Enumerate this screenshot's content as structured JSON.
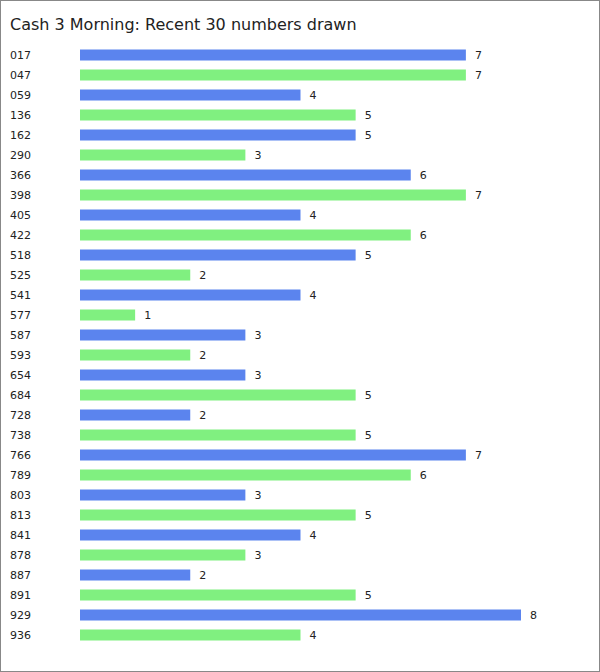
{
  "chart_data": {
    "type": "bar",
    "title": "Cash 3 Morning: Recent 30 numbers drawn",
    "orientation": "horizontal",
    "categories": [
      "017",
      "047",
      "059",
      "136",
      "162",
      "290",
      "366",
      "398",
      "405",
      "422",
      "518",
      "525",
      "541",
      "577",
      "587",
      "593",
      "654",
      "684",
      "728",
      "738",
      "766",
      "789",
      "803",
      "813",
      "841",
      "878",
      "887",
      "891",
      "929",
      "936"
    ],
    "values": [
      7,
      7,
      4,
      5,
      5,
      3,
      6,
      7,
      4,
      6,
      5,
      2,
      4,
      1,
      3,
      2,
      3,
      5,
      2,
      5,
      7,
      6,
      3,
      5,
      4,
      3,
      2,
      5,
      8,
      4
    ],
    "colors": [
      "#5b84ee",
      "#80f080",
      "#5b84ee",
      "#80f080",
      "#5b84ee",
      "#80f080",
      "#5b84ee",
      "#80f080",
      "#5b84ee",
      "#80f080",
      "#5b84ee",
      "#80f080",
      "#5b84ee",
      "#80f080",
      "#5b84ee",
      "#80f080",
      "#5b84ee",
      "#80f080",
      "#5b84ee",
      "#80f080",
      "#5b84ee",
      "#80f080",
      "#5b84ee",
      "#80f080",
      "#5b84ee",
      "#80f080",
      "#5b84ee",
      "#80f080",
      "#5b84ee",
      "#80f080"
    ],
    "xlim": [
      0,
      8
    ],
    "data_labels": true,
    "tick_labels": "y",
    "grid": false
  }
}
